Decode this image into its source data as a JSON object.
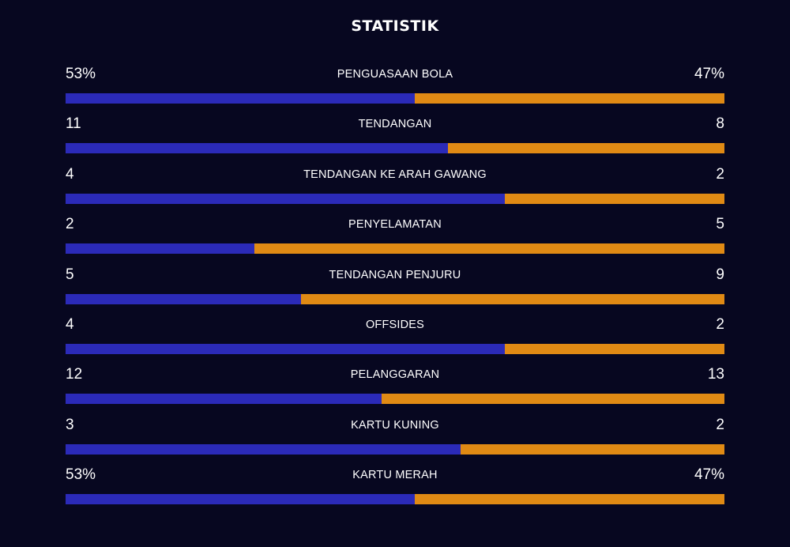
{
  "title": "STATISTIK",
  "colors": {
    "background": "#070720",
    "left_team": "#2b2ab8",
    "right_team": "#e08a14",
    "text": "#ffffff"
  },
  "chart_data": {
    "type": "bar",
    "orientation": "horizontal-stacked-comparison",
    "title": "STATISTIK",
    "categories": [
      "PENGUASAAN BOLA",
      "TENDANGAN",
      "TENDANGAN KE ARAH GAWANG",
      "PENYELAMATAN",
      "TENDANGAN PENJURU",
      "OFFSIDES",
      "PELANGGARAN",
      "KARTU KUNING",
      "KARTU MERAH"
    ],
    "rows": [
      {
        "label": "PENGUASAAN BOLA",
        "left": "53%",
        "right": "47%",
        "left_share": 0.53
      },
      {
        "label": "TENDANGAN",
        "left": "11",
        "right": "8",
        "left_share": 0.58
      },
      {
        "label": "TENDANGAN KE ARAH GAWANG",
        "left": "4",
        "right": "2",
        "left_share": 0.667
      },
      {
        "label": "PENYELAMATAN",
        "left": "2",
        "right": "5",
        "left_share": 0.286
      },
      {
        "label": "TENDANGAN PENJURU",
        "left": "5",
        "right": "9",
        "left_share": 0.357
      },
      {
        "label": "OFFSIDES",
        "left": "4",
        "right": "2",
        "left_share": 0.667
      },
      {
        "label": "PELANGGARAN",
        "left": "12",
        "right": "13",
        "left_share": 0.48
      },
      {
        "label": "KARTU KUNING",
        "left": "3",
        "right": "2",
        "left_share": 0.6
      },
      {
        "label": "KARTU MERAH",
        "left": "53%",
        "right": "47%",
        "left_share": 0.53
      }
    ],
    "grid": false,
    "legend": "none"
  }
}
